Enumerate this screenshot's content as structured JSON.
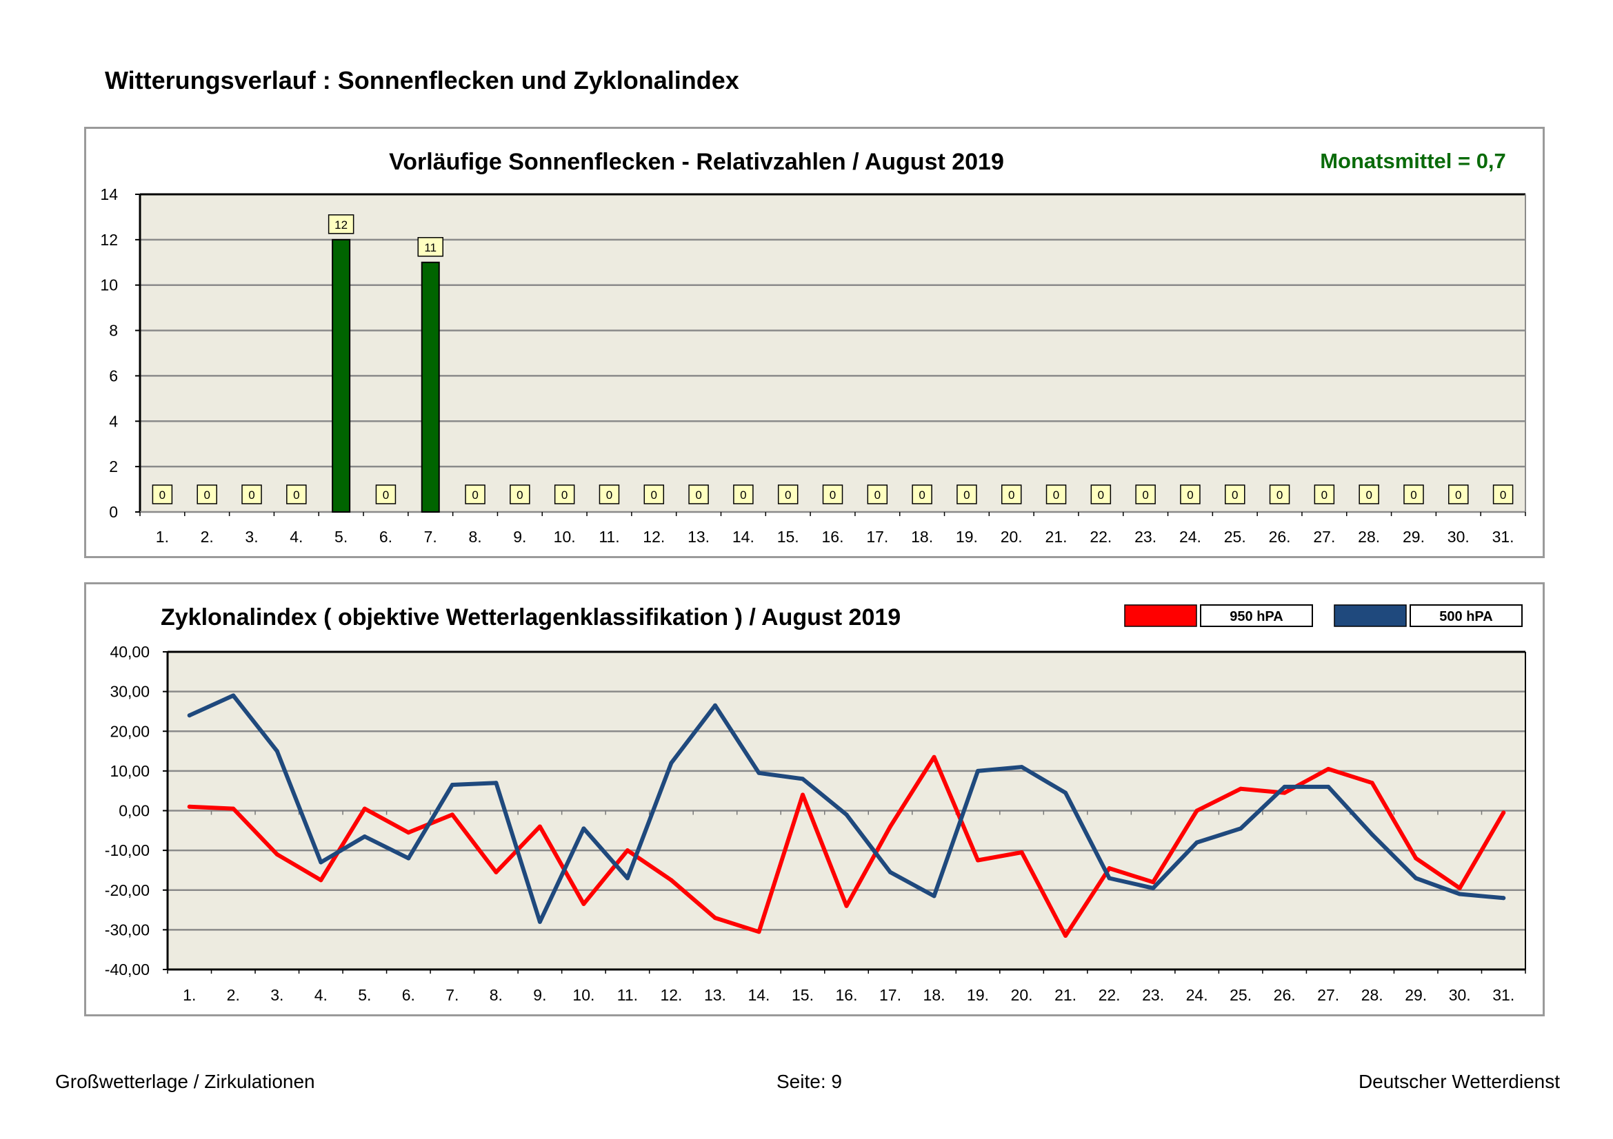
{
  "page": {
    "title": "Witterungsverlauf : Sonnenflecken und Zyklonalindex"
  },
  "footer": {
    "left": "Großwetterlage / Zirkulationen",
    "center": "Seite: 9",
    "right": "Deutscher Wetterdienst"
  },
  "colors": {
    "plot_background": "#edebe0",
    "bar_fill": "#006400",
    "label_box": "#ffffc0",
    "series_950": "#ff0000",
    "series_500": "#1f497d",
    "mean_text": "#0a6b0a"
  },
  "chart_data": [
    {
      "type": "bar",
      "title": "Vorläufige Sonnenflecken - Relativzahlen  /   August 2019",
      "annotation": "Monatsmittel = 0,7",
      "categories": [
        "1.",
        "2.",
        "3.",
        "4.",
        "5.",
        "6.",
        "7.",
        "8.",
        "9.",
        "10.",
        "11.",
        "12.",
        "13.",
        "14.",
        "15.",
        "16.",
        "17.",
        "18.",
        "19.",
        "20.",
        "21.",
        "22.",
        "23.",
        "24.",
        "25.",
        "26.",
        "27.",
        "28.",
        "29.",
        "30.",
        "31."
      ],
      "values": [
        0,
        0,
        0,
        0,
        12,
        0,
        11,
        0,
        0,
        0,
        0,
        0,
        0,
        0,
        0,
        0,
        0,
        0,
        0,
        0,
        0,
        0,
        0,
        0,
        0,
        0,
        0,
        0,
        0,
        0,
        0
      ],
      "ylim": [
        0,
        14
      ],
      "yticks": [
        "0",
        "2",
        "4",
        "6",
        "8",
        "10",
        "12",
        "14"
      ],
      "grid": true,
      "data_labels": true
    },
    {
      "type": "line",
      "title": "Zyklonalindex  ( objektive Wetterlagenklassifikation )  /  August 2019",
      "categories": [
        "1.",
        "2.",
        "3.",
        "4.",
        "5.",
        "6.",
        "7.",
        "8.",
        "9.",
        "10.",
        "11.",
        "12.",
        "13.",
        "14.",
        "15.",
        "16.",
        "17.",
        "18.",
        "19.",
        "20.",
        "21.",
        "22.",
        "23.",
        "24.",
        "25.",
        "26.",
        "27.",
        "28.",
        "29.",
        "30.",
        "31."
      ],
      "ylim": [
        -40,
        40
      ],
      "yticks": [
        "-40,00",
        "-30,00",
        "-20,00",
        "-10,00",
        "0,00",
        "10,00",
        "20,00",
        "30,00",
        "40,00"
      ],
      "grid": true,
      "legend_position": "top-right",
      "series": [
        {
          "name": "950 hPA",
          "color": "#ff0000",
          "values": [
            1,
            0.5,
            -11,
            -17.5,
            0.5,
            -5.5,
            -1,
            -15.5,
            -4,
            -23.5,
            -10,
            -17.5,
            -27,
            -30.5,
            4,
            -24,
            -4,
            13.5,
            -12.5,
            -10.5,
            -31.5,
            -14.5,
            -18,
            0,
            5.5,
            4.5,
            10.5,
            7,
            -12,
            -19.5,
            -0.5
          ]
        },
        {
          "name": "500 hPA",
          "color": "#1f497d",
          "values": [
            24,
            29,
            15,
            -13,
            -6.5,
            -12,
            6.5,
            7,
            -28,
            -4.5,
            -17,
            12,
            26.5,
            9.5,
            8,
            -1,
            -15.5,
            -21.5,
            10,
            11,
            4.5,
            -17,
            -19.5,
            -8,
            -4.5,
            6,
            6,
            -6,
            -17,
            -21,
            -22
          ]
        }
      ]
    }
  ]
}
